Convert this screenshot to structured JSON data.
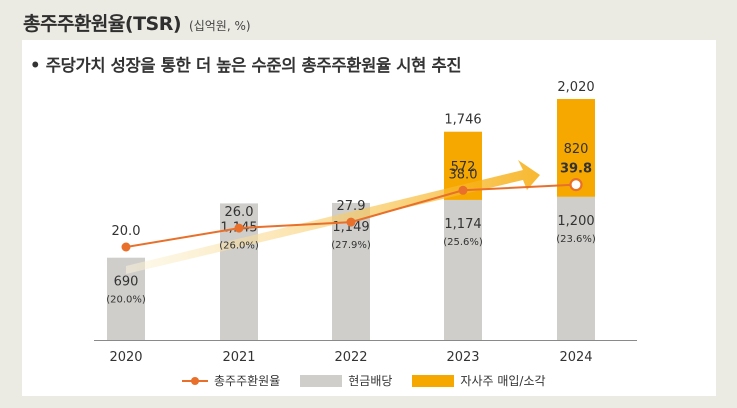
{
  "header": {
    "title": "총주주환원율(TSR)",
    "unit": "(십억원, %)"
  },
  "subtitle": "• 주당가치 성장을 통한 더 높은 수준의 총주주환원율 시현 추진",
  "colors": {
    "line": "#e8702a",
    "cash": "#cfcecb",
    "buyback": "#f6a800",
    "arrow": "#f8d27a"
  },
  "chart_data": {
    "type": "bar+line",
    "categories": [
      "2020",
      "2021",
      "2022",
      "2023",
      "2024"
    ],
    "series": [
      {
        "name": "현금배당",
        "kind": "stacked-bar",
        "values": [
          690,
          1145,
          1149,
          1174,
          1200
        ],
        "labels": [
          "690",
          "1,145",
          "1,149",
          "1,174",
          "1,200"
        ],
        "sublabels": [
          "(20.0%)",
          "(26.0%)",
          "(27.9%)",
          "(25.6%)",
          "(23.6%)"
        ]
      },
      {
        "name": "자사주 매입/소각",
        "kind": "stacked-bar",
        "values": [
          0,
          0,
          0,
          572,
          820
        ],
        "labels": [
          "",
          "",
          "",
          "572",
          "820"
        ]
      },
      {
        "name": "총주주환원율",
        "kind": "line",
        "values": [
          20.0,
          26.0,
          27.9,
          38.0,
          39.8
        ],
        "labels": [
          "20.0",
          "26.0",
          "27.9",
          "38.0",
          "39.8"
        ]
      }
    ],
    "totals": [
      "",
      "",
      "",
      "1,746",
      "2,020"
    ]
  },
  "legend": {
    "line": "총주주환원율",
    "cash": "현금배당",
    "buyback": "자사주 매입/소각"
  }
}
